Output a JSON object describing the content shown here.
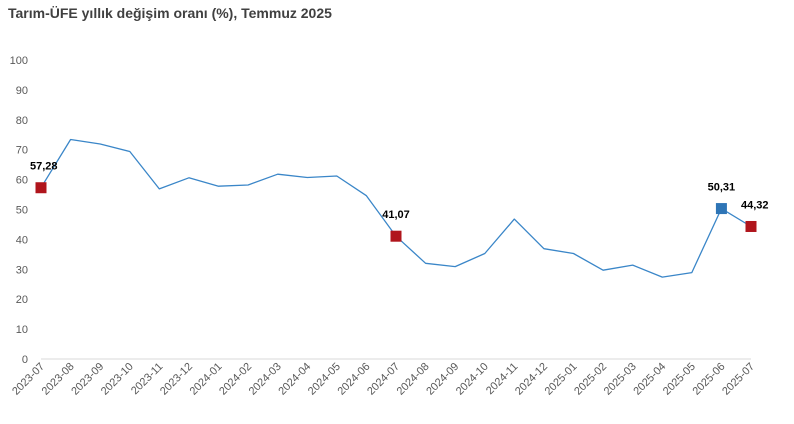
{
  "chart_data": {
    "type": "line",
    "title": "Tarım-ÜFE yıllık değişim oranı (%), Temmuz 2025",
    "xlabel": "",
    "ylabel": "",
    "ylim": [
      0,
      100
    ],
    "yticks": [
      0,
      10,
      20,
      30,
      40,
      50,
      60,
      70,
      80,
      90,
      100
    ],
    "grid": false,
    "legend": "none",
    "categories": [
      "2023-07",
      "2023-08",
      "2023-09",
      "2023-10",
      "2023-11",
      "2023-12",
      "2024-01",
      "2024-02",
      "2024-03",
      "2024-04",
      "2024-05",
      "2024-06",
      "2024-07",
      "2024-08",
      "2024-09",
      "2024-10",
      "2024-11",
      "2024-12",
      "2025-01",
      "2025-02",
      "2025-03",
      "2025-04",
      "2025-05",
      "2025-06",
      "2025-07"
    ],
    "series": [
      {
        "values": [
          57.28,
          73.4,
          71.9,
          69.4,
          56.9,
          60.6,
          57.8,
          58.2,
          61.8,
          60.7,
          61.2,
          54.6,
          41.07,
          32.0,
          30.9,
          35.3,
          46.8,
          36.9,
          35.3,
          29.7,
          31.4,
          27.4,
          28.9,
          50.31,
          44.32
        ],
        "color": "#3a86c8"
      }
    ],
    "labeled_points": [
      {
        "index": 0,
        "label": "57,28",
        "marker_color": "#b0151c"
      },
      {
        "index": 12,
        "label": "41,07",
        "marker_color": "#b0151c"
      },
      {
        "index": 23,
        "label": "50,31",
        "marker_color": "#2e75b6"
      },
      {
        "index": 24,
        "label": "44,32",
        "marker_color": "#b0151c"
      }
    ]
  }
}
